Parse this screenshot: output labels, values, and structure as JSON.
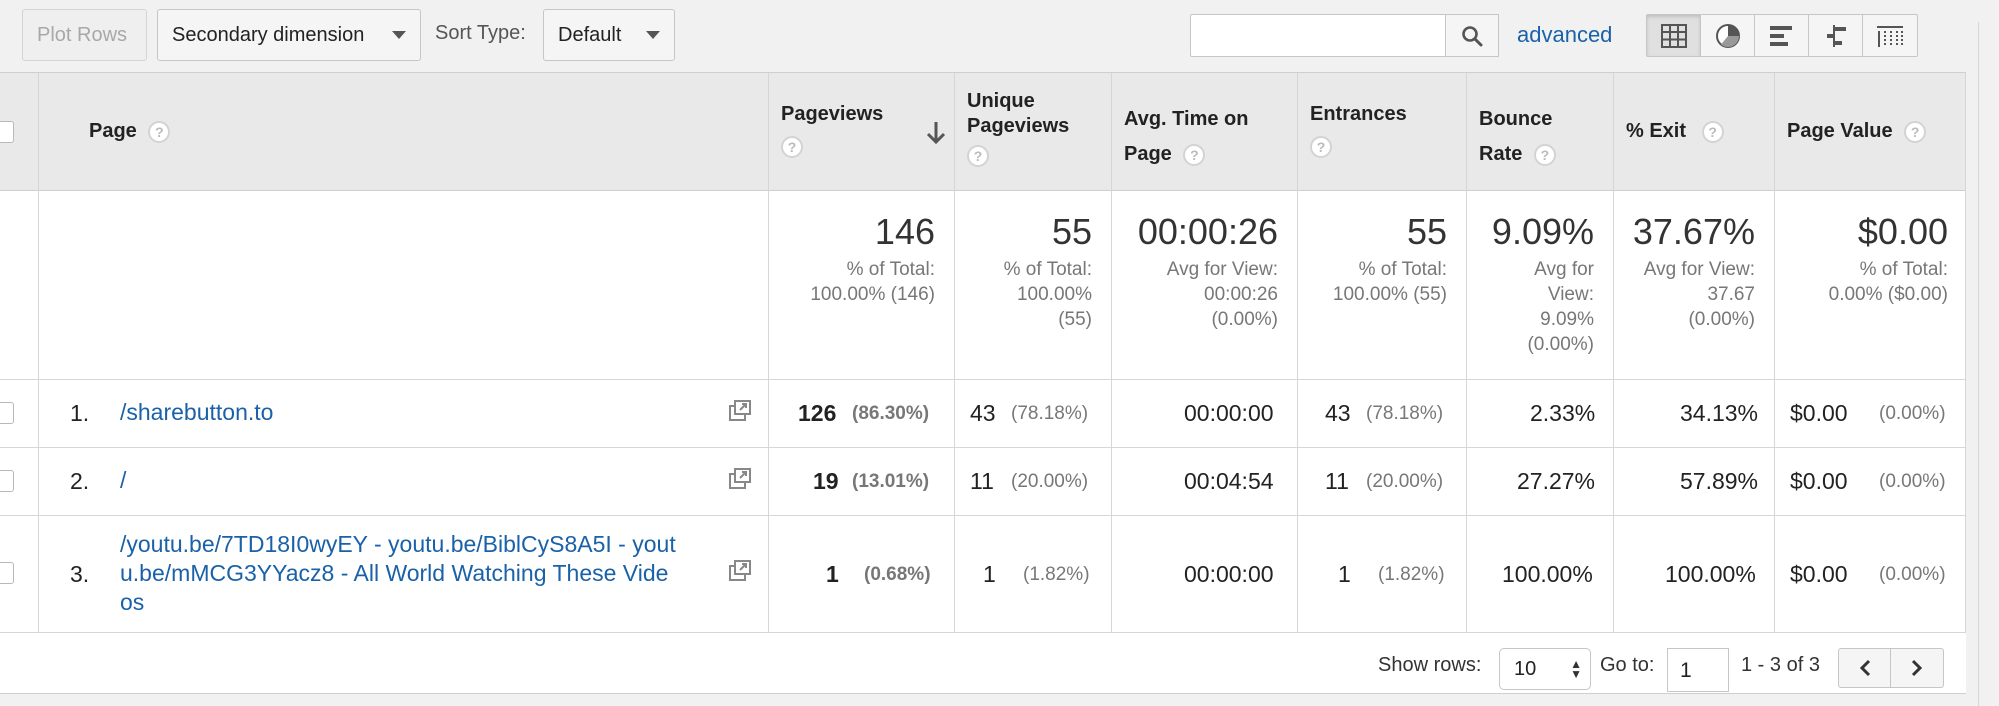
{
  "toolbar": {
    "plot_rows": "Plot Rows",
    "secondary_dimension": "Secondary dimension",
    "sort_type_label": "Sort Type:",
    "sort_type_value": "Default",
    "search_placeholder": "",
    "advanced": "advanced"
  },
  "table": {
    "columns": {
      "page": "Page",
      "pageviews": "Pageviews",
      "unique_pageviews_1": "Unique",
      "unique_pageviews_2": "Pageviews",
      "avg_time_1": "Avg. Time on",
      "avg_time_2": "Page",
      "entrances": "Entrances",
      "bounce_1": "Bounce",
      "bounce_2": "Rate",
      "exit": "% Exit",
      "page_value": "Page Value"
    },
    "totals": {
      "pageviews": "146",
      "pageviews_sub1": "% of Total:",
      "pageviews_sub2": "100.00% (146)",
      "unique": "55",
      "unique_sub1": "% of Total:",
      "unique_sub2": "100.00%",
      "unique_sub3": "(55)",
      "avg_time": "00:00:26",
      "avg_time_sub1": "Avg for View:",
      "avg_time_sub2": "00:00:26",
      "avg_time_sub3": "(0.00%)",
      "entrances": "55",
      "entrances_sub1": "% of Total:",
      "entrances_sub2": "100.00% (55)",
      "bounce": "9.09%",
      "bounce_sub1": "Avg for",
      "bounce_sub2": "View:",
      "bounce_sub3": "9.09%",
      "bounce_sub4": "(0.00%)",
      "exit": "37.67%",
      "exit_sub1": "Avg for View:",
      "exit_sub2": "37.67",
      "exit_sub3": "(0.00%)",
      "page_value": "$0.00",
      "page_value_sub1": "% of Total:",
      "page_value_sub2": "0.00% ($0.00)"
    },
    "rows": [
      {
        "num": "1.",
        "page_lines": [
          "/sharebutton.to"
        ],
        "pageviews": "126",
        "pageviews_pct": "(86.30%)",
        "unique": "43",
        "unique_pct": "(78.18%)",
        "avg_time": "00:00:00",
        "entrances": "43",
        "entrances_pct": "(78.18%)",
        "bounce": "2.33%",
        "exit": "34.13%",
        "value": "$0.00",
        "value_pct": "(0.00%)"
      },
      {
        "num": "2.",
        "page_lines": [
          "/"
        ],
        "pageviews": "19",
        "pageviews_pct": "(13.01%)",
        "unique": "11",
        "unique_pct": "(20.00%)",
        "avg_time": "00:04:54",
        "entrances": "11",
        "entrances_pct": "(20.00%)",
        "bounce": "27.27%",
        "exit": "57.89%",
        "value": "$0.00",
        "value_pct": "(0.00%)"
      },
      {
        "num": "3.",
        "page_lines": [
          "/youtu.be/7TD18I0wyEY - youtu.be/BiblCyS8A5I - yout",
          "u.be/mMCG3YYacz8 - All World Watching These Vide",
          "os"
        ],
        "pageviews": "1",
        "pageviews_pct": "(0.68%)",
        "unique": "1",
        "unique_pct": "(1.82%)",
        "avg_time": "00:00:00",
        "entrances": "1",
        "entrances_pct": "(1.82%)",
        "bounce": "100.00%",
        "exit": "100.00%",
        "value": "$0.00",
        "value_pct": "(0.00%)"
      }
    ]
  },
  "footer": {
    "show_rows_label": "Show rows:",
    "show_rows_value": "10",
    "goto_label": "Go to:",
    "goto_value": "1",
    "range": "1 - 3 of 3"
  },
  "icons": {
    "search": "search-icon",
    "sort": "arrow-down-icon",
    "help": "question-icon",
    "external": "open-in-new-icon",
    "views": [
      "table-view-icon",
      "pie-view-icon",
      "bar-view-icon",
      "comparison-view-icon",
      "pivot-view-icon"
    ]
  }
}
